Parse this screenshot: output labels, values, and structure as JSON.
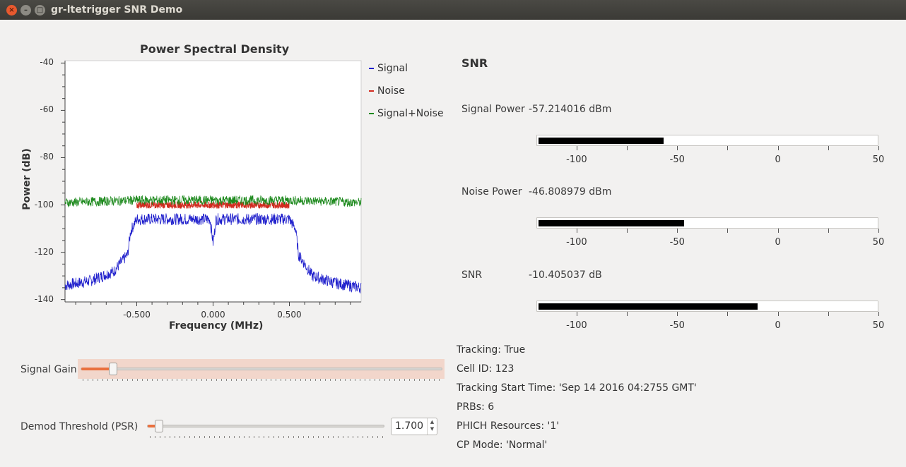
{
  "window": {
    "title": "gr-ltetrigger SNR Demo",
    "close_glyph": "×",
    "min_glyph": "–",
    "max_glyph": "□"
  },
  "psd": {
    "title": "Power Spectral Density",
    "xlabel": "Frequency (MHz)",
    "ylabel": "Power (dB)",
    "y_ticks": [
      "-40",
      "-60",
      "-80",
      "-100",
      "-120",
      "-140"
    ],
    "x_ticks": [
      "-0.500",
      "0.000",
      "0.500"
    ],
    "legend": [
      {
        "name": "Signal",
        "color": "#1f1fcc"
      },
      {
        "name": "Noise",
        "color": "#d22b1f"
      },
      {
        "name": "Signal+Noise",
        "color": "#1e8a1e"
      }
    ]
  },
  "chart_data": {
    "type": "line",
    "title": "Power Spectral Density",
    "xlabel": "Frequency (MHz)",
    "ylabel": "Power (dB)",
    "xlim": [
      -0.97,
      0.97
    ],
    "ylim": [
      -141,
      -39
    ],
    "x_ticks": [
      -0.5,
      0.0,
      0.5
    ],
    "y_ticks": [
      -40,
      -60,
      -80,
      -100,
      -120,
      -140
    ],
    "legend_position": "right",
    "series": [
      {
        "name": "Signal",
        "color": "#1f1fcc",
        "x": [
          -0.97,
          -0.8,
          -0.65,
          -0.56,
          -0.54,
          -0.5,
          -0.3,
          -0.02,
          0.0,
          0.02,
          0.3,
          0.5,
          0.54,
          0.56,
          0.65,
          0.8,
          0.97
        ],
        "y": [
          -134,
          -132,
          -128,
          -121,
          -111,
          -106,
          -106,
          -106,
          -116,
          -106,
          -106,
          -106,
          -110,
          -121,
          -130,
          -133,
          -135
        ]
      },
      {
        "name": "Noise",
        "color": "#d22b1f",
        "x": [
          -0.5,
          -0.25,
          0.0,
          0.25,
          0.5
        ],
        "y": [
          -100,
          -100,
          -100,
          -100,
          -100
        ]
      },
      {
        "name": "Signal+Noise",
        "color": "#1e8a1e",
        "x": [
          -0.97,
          -0.5,
          0.0,
          0.5,
          0.97
        ],
        "y": [
          -99,
          -98,
          -98,
          -98,
          -99
        ]
      }
    ]
  },
  "snr_panel": {
    "heading": "SNR",
    "meters": [
      {
        "label": "Signal Power",
        "value_text": "-57.214016 dBm",
        "value": -57.214016
      },
      {
        "label": "Noise Power",
        "value_text": "-46.808979 dBm",
        "value": -46.808979
      },
      {
        "label": "SNR",
        "value_text": "-10.405037 dB",
        "value": -10.405037
      }
    ],
    "scale_min": -120,
    "scale_max": 50,
    "scale_labels": [
      "-100",
      "-50",
      "0",
      "50"
    ]
  },
  "info": [
    "Tracking: True",
    "Cell ID: 123",
    "Tracking Start Time: 'Sep 14 2016 04:2755 GMT'",
    "PRBs: 6",
    "PHICH Resources: '1'",
    "CP Mode: 'Normal'"
  ],
  "controls": {
    "signal_gain_label": "Signal Gain",
    "signal_gain_level": 0.09,
    "demod_threshold_label": "Demod Threshold (PSR)",
    "demod_threshold_value": "1.700",
    "demod_threshold_level": 0.05,
    "spin_up": "▲",
    "spin_down": "▼"
  }
}
